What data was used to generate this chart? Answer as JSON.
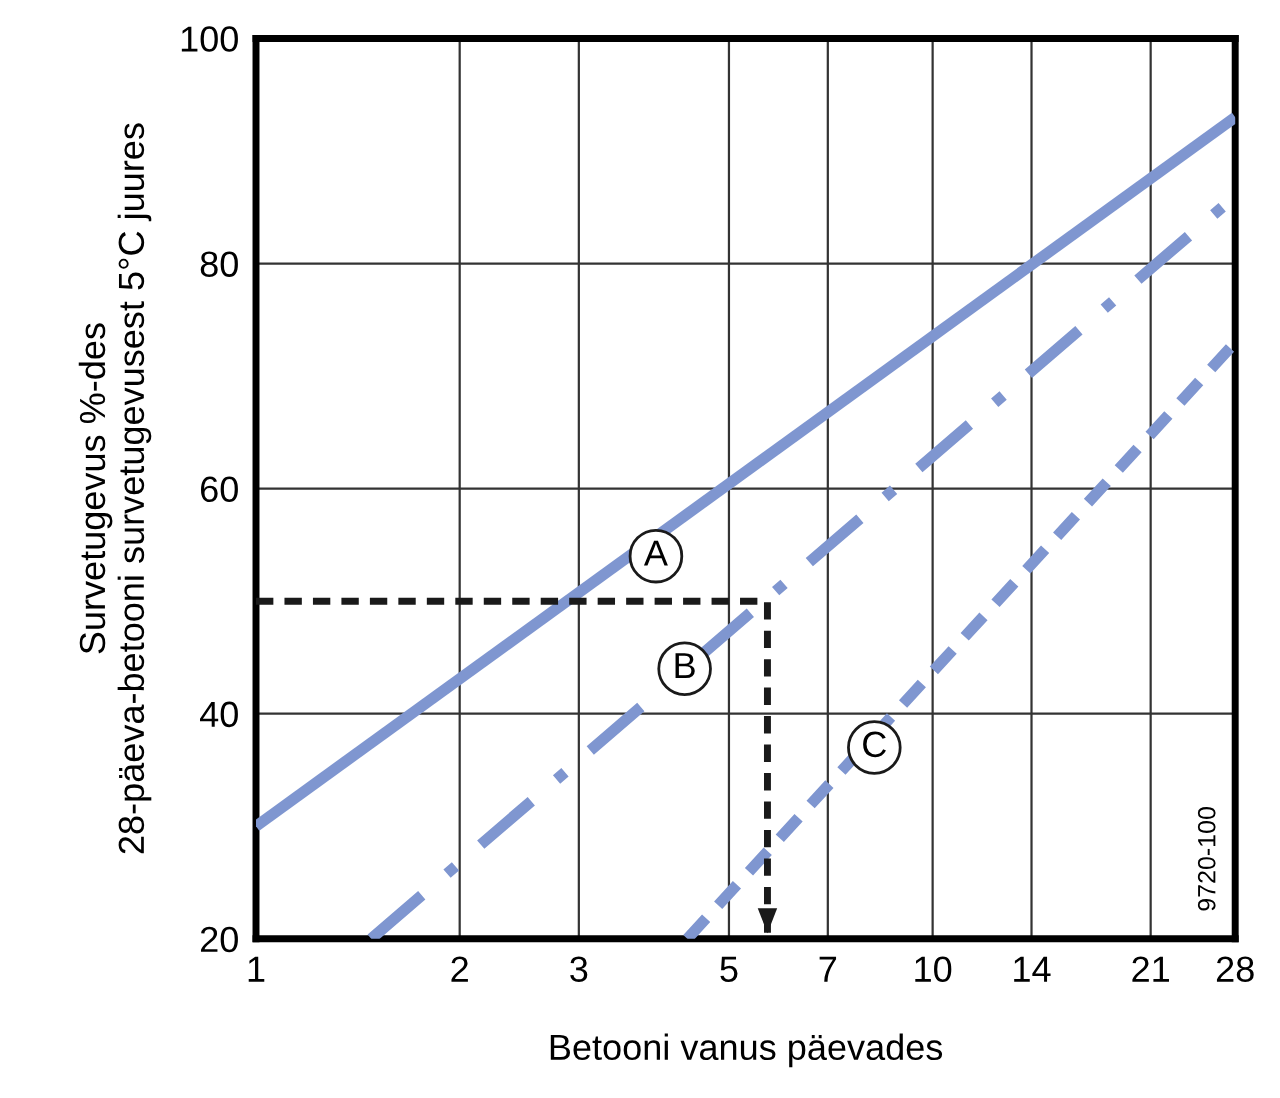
{
  "chart_data": {
    "type": "line",
    "xlabel": "Betooni vanus päevades",
    "ylabel": "Survetugevus %-des\n28-päeva-betooni survetugevusest 5°C juures",
    "log": "x",
    "xlim": [
      1,
      28
    ],
    "xticks": [
      1,
      2,
      3,
      5,
      7,
      10,
      14,
      21,
      28
    ],
    "ylim": [
      20,
      100
    ],
    "yticks": [
      20,
      40,
      60,
      80,
      100
    ],
    "grid": true,
    "series": [
      {
        "color": "#7f96d0",
        "line_style": "solid",
        "x": [
          1,
          28
        ],
        "values": [
          30,
          93
        ]
      },
      {
        "color": "#7f96d0",
        "line_style": "dashdot",
        "x": [
          1.48,
          28
        ],
        "values": [
          20,
          86
        ]
      },
      {
        "color": "#7f96d0",
        "line_style": "dashed",
        "x": [
          4.34,
          28
        ],
        "values": [
          20,
          73
        ]
      },
      {
        "color": "#1a1a1a",
        "line_style": "dashed",
        "x": [
          1,
          5.7,
          5.7
        ],
        "values": [
          50,
          50,
          20
        ]
      }
    ],
    "annotations": [
      {
        "text": "A",
        "x": 3.9,
        "y": 54
      },
      {
        "text": "B",
        "x": 4.3,
        "y": 44
      },
      {
        "text": "C",
        "x": 8.2,
        "y": 37
      },
      "9720-100"
    ]
  }
}
